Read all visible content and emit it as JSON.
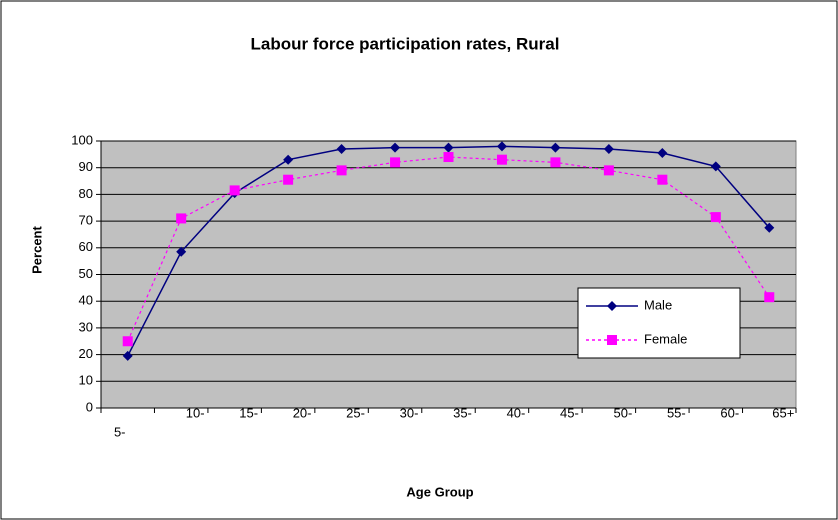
{
  "chart_data": {
    "type": "line",
    "title": "Labour force participation rates, Rural",
    "x_label": "Age Group",
    "y_label": "Percent",
    "categories": [
      "5-",
      "10-",
      "15-",
      "20-",
      "25-",
      "30-",
      "35-",
      "40-",
      "45-",
      "50-",
      "55-",
      "60-",
      "65+"
    ],
    "series": [
      {
        "name": "Male",
        "color": "#000080",
        "values": [
          19.5,
          58.5,
          80.5,
          93,
          97,
          97.5,
          97.5,
          98,
          97.5,
          97,
          95.5,
          90.5,
          67.5
        ]
      },
      {
        "name": "Female",
        "color": "#ff00ff",
        "values": [
          25,
          71,
          81.5,
          85.5,
          89,
          92,
          94,
          93,
          92,
          89,
          85.5,
          71.5,
          41.5
        ]
      }
    ],
    "ylim": [
      0,
      100
    ],
    "yticks": [
      0,
      10,
      20,
      30,
      40,
      50,
      60,
      70,
      80,
      90,
      100
    ],
    "grid": true,
    "legend": "right"
  }
}
